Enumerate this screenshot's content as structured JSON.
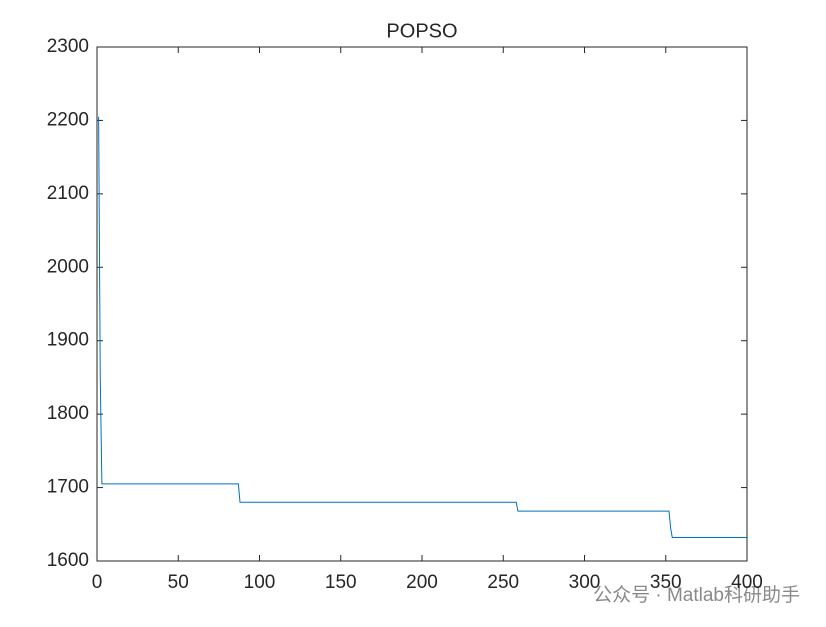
{
  "chart_data": {
    "type": "line",
    "title": "POPSO",
    "x": [
      1,
      2,
      3,
      87,
      88,
      258,
      259,
      352,
      353,
      354,
      400
    ],
    "series": [
      {
        "color": "#0072bd",
        "values": [
          2205,
          1850,
          1705,
          1705,
          1680,
          1680,
          1668,
          1668,
          1645,
          1632,
          1632
        ]
      }
    ],
    "xlim": [
      0,
      400
    ],
    "xticks": [
      0,
      50,
      100,
      150,
      200,
      250,
      300,
      350,
      400
    ],
    "ylim": [
      1600,
      2300
    ],
    "yticks": [
      1600,
      1700,
      1800,
      1900,
      2000,
      2100,
      2200,
      2300
    ],
    "grid": false
  },
  "watermark": "公众号 · Matlab科研助手"
}
